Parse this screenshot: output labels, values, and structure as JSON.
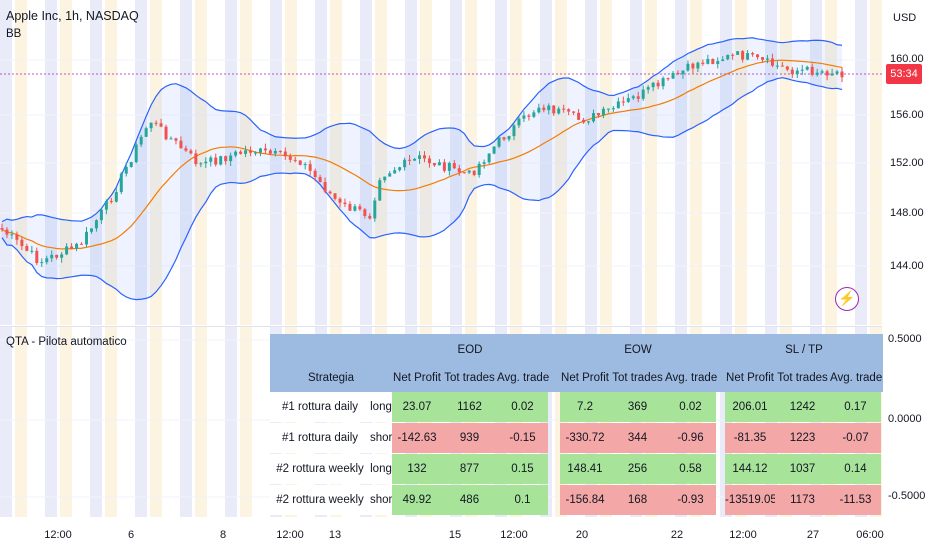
{
  "header": {
    "title": "Apple Inc, 1h, NASDAQ",
    "indicator": "BB",
    "currency": "USD",
    "countdown": "53:34"
  },
  "price_axis": [
    "160.00",
    "156.00",
    "152.00",
    "148.00",
    "144.00"
  ],
  "indicator_pane": {
    "title": "QTA - Pilota automatico",
    "axis": [
      "0.5000",
      "0.0000",
      "-0.5000"
    ]
  },
  "time_axis": [
    "12:00",
    "6",
    "8",
    "12:00",
    "13",
    "15",
    "12:00",
    "20",
    "22",
    "12:00",
    "27",
    "06:00"
  ],
  "table": {
    "groups": [
      "EOD",
      "EOW",
      "SL / TP"
    ],
    "strategy_header": "Strategia",
    "col_headers": [
      "Net Profit",
      "Tot trades",
      "Avg. trade"
    ],
    "rows": [
      {
        "name": "#1 rottura daily",
        "side": "long",
        "values": [
          [
            "23.07",
            "1162",
            "0.02"
          ],
          [
            "7.2",
            "369",
            "0.02"
          ],
          [
            "206.01",
            "1242",
            "0.17"
          ]
        ],
        "status": [
          "g",
          "g",
          "g"
        ]
      },
      {
        "name": "#1 rottura daily",
        "side": "short",
        "values": [
          [
            "-142.63",
            "939",
            "-0.15"
          ],
          [
            "-330.72",
            "344",
            "-0.96"
          ],
          [
            "-81.35",
            "1223",
            "-0.07"
          ]
        ],
        "status": [
          "r",
          "r",
          "r"
        ]
      },
      {
        "name": "#2 rottura weekly",
        "side": "long",
        "values": [
          [
            "132",
            "877",
            "0.15"
          ],
          [
            "148.41",
            "256",
            "0.58"
          ],
          [
            "144.12",
            "1037",
            "0.14"
          ]
        ],
        "status": [
          "g",
          "g",
          "g"
        ]
      },
      {
        "name": "#2 rottura weekly",
        "side": "short",
        "values": [
          [
            "49.92",
            "486",
            "0.1"
          ],
          [
            "-156.84",
            "168",
            "-0.93"
          ],
          [
            "-13519.05",
            "1173",
            "-11.53"
          ]
        ],
        "status": [
          "g",
          "r",
          "r"
        ]
      }
    ]
  },
  "colors": {
    "up": "#26a69a",
    "down": "#ef5350",
    "band": "#2962ff",
    "basis": "#f57c00",
    "header_bg": "#9dbbe0",
    "positive_cell": "#a7e49a",
    "negative_cell": "#f4a7a7"
  }
}
